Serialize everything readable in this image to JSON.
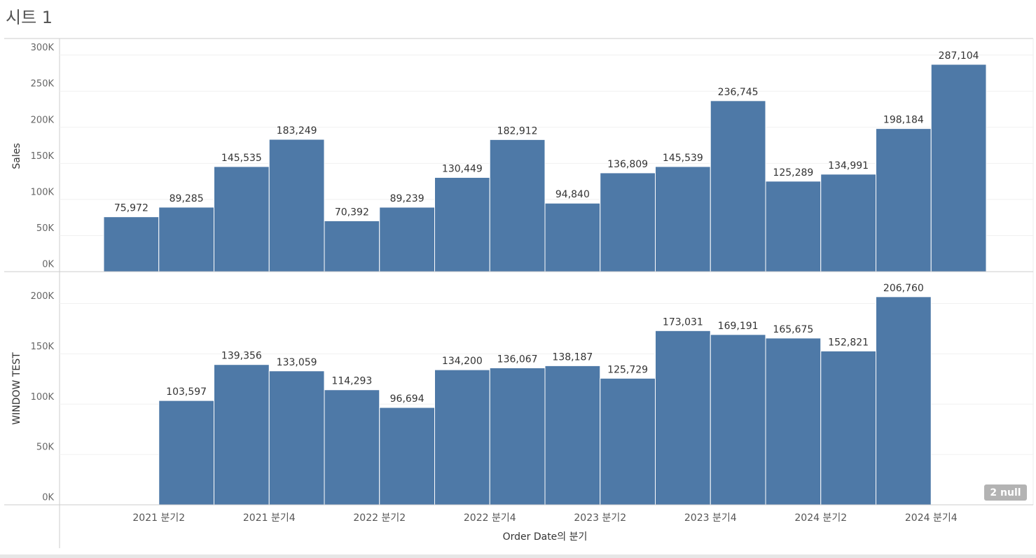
{
  "title": "시트 1",
  "chart_data": {
    "type": "bar",
    "color": "#4e79a7",
    "grid": true,
    "xlabel": "Order Date의 분기",
    "categories": [
      null,
      "2021 분기2",
      null,
      "2021 분기4",
      null,
      "2022 분기2",
      null,
      "2022 분기4",
      null,
      "2023 분기2",
      null,
      "2023 분기4",
      null,
      "2024 분기2",
      null,
      "2024 분기4"
    ],
    "panels": [
      {
        "ylabel": "Sales",
        "values": [
          75972,
          89285,
          145535,
          183249,
          70392,
          89239,
          130449,
          182912,
          94840,
          136809,
          145539,
          236745,
          125289,
          134991,
          198184,
          287104
        ],
        "value_labels": [
          "75,972",
          "89,285",
          "145,535",
          "183,249",
          "70,392",
          "89,239",
          "130,449",
          "182,912",
          "94,840",
          "136,809",
          "145,539",
          "236,745",
          "125,289",
          "134,991",
          "198,184",
          "287,104"
        ],
        "ylim": [
          0,
          320000
        ],
        "yticks": [
          {
            "value": 0,
            "label": "0K"
          },
          {
            "value": 50000,
            "label": "50K"
          },
          {
            "value": 100000,
            "label": "100K"
          },
          {
            "value": 150000,
            "label": "150K"
          },
          {
            "value": 200000,
            "label": "200K"
          },
          {
            "value": 250000,
            "label": "250K"
          },
          {
            "value": 300000,
            "label": "300K"
          }
        ]
      },
      {
        "ylabel": "WINDOW TEST",
        "values": [
          null,
          103597,
          139356,
          133059,
          114293,
          96694,
          134200,
          136067,
          138187,
          125729,
          173031,
          169191,
          165675,
          152821,
          206760,
          null
        ],
        "value_labels": [
          null,
          "103,597",
          "139,356",
          "133,059",
          "114,293",
          "96,694",
          "134,200",
          "136,067",
          "138,187",
          "125,729",
          "173,031",
          "169,191",
          "165,675",
          "152,821",
          "206,760",
          null
        ],
        "ylim": [
          0,
          231000
        ],
        "yticks": [
          {
            "value": 0,
            "label": "0K"
          },
          {
            "value": 50000,
            "label": "50K"
          },
          {
            "value": 100000,
            "label": "100K"
          },
          {
            "value": 150000,
            "label": "150K"
          },
          {
            "value": 200000,
            "label": "200K"
          }
        ]
      }
    ],
    "null_indicator": "2 null"
  }
}
